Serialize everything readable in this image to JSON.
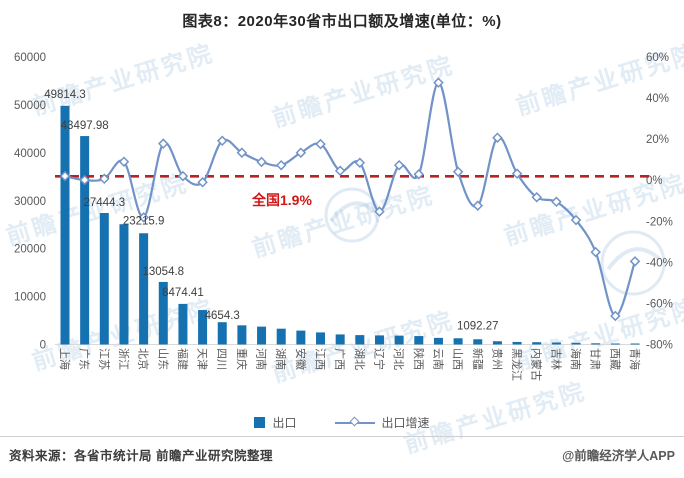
{
  "title": "图表8：2020年30省市出口额及增速(单位：%)",
  "legend": {
    "bar_label": "出口",
    "line_label": "出口增速"
  },
  "footer": {
    "source": "资料来源：各省市统计局 前瞻产业研究院整理",
    "credit": "@前瞻经济学人APP"
  },
  "watermark_text": "前瞻产业研究院",
  "colors": {
    "bar": "#1571b0",
    "line": "#7193c7",
    "marker_fill": "#ffffff",
    "reference_line": "#b32424",
    "annotation_text": "#d01616",
    "axis_text": "#595959",
    "data_label_text": "#404040",
    "axis_line": "#d9d9d9"
  },
  "chart_data": {
    "type": "bar+line",
    "title": "图表8：2020年30省市出口额及增速(单位：%)",
    "categories": [
      "上海",
      "广东",
      "江苏",
      "浙江",
      "北京",
      "山东",
      "福建",
      "天津",
      "四川",
      "重庆",
      "河南",
      "湖南",
      "安徽",
      "江西",
      "广西",
      "湖北",
      "辽宁",
      "河北",
      "陕西",
      "云南",
      "山西",
      "新疆",
      "贵州",
      "黑龙江",
      "内蒙古",
      "吉林",
      "海南",
      "甘肃",
      "西藏",
      "青海"
    ],
    "series": [
      {
        "name": "出口",
        "type": "bar",
        "axis": "left",
        "values": [
          49814.3,
          43497.98,
          27444.3,
          25100,
          23215.9,
          13054.8,
          8474.41,
          7190,
          4654.3,
          4000,
          3730,
          3300,
          2900,
          2520,
          2100,
          1960,
          1900,
          1850,
          1760,
          1380,
          1300,
          1092.27,
          680,
          530,
          480,
          420,
          350,
          250,
          130,
          60
        ]
      },
      {
        "name": "出口增速",
        "type": "line",
        "axis": "right",
        "values_pct": [
          2.0,
          0.1,
          0.7,
          9.0,
          -18.1,
          17.8,
          2.0,
          -1.0,
          19.2,
          13.4,
          8.9,
          7.3,
          13.4,
          17.6,
          4.6,
          8.5,
          -15.3,
          7.3,
          2.9,
          47.5,
          4.1,
          -12.4,
          20.7,
          3.2,
          -8.3,
          -10.5,
          -19.4,
          -35.0,
          -66.1,
          -39.5
        ]
      }
    ],
    "bar_labels": [
      "49814.3",
      "43497.98",
      "27444.3",
      null,
      "23215.9",
      "13054.8",
      "8474.41",
      null,
      "4654.3",
      null,
      null,
      null,
      null,
      null,
      null,
      null,
      null,
      null,
      null,
      null,
      null,
      "1092.27",
      null,
      null,
      null,
      null,
      null,
      null,
      null,
      null
    ],
    "left_axis": {
      "min": 0,
      "max": 60000,
      "step": 10000,
      "ticks": [
        "60000",
        "50000",
        "40000",
        "30000",
        "20000",
        "10000",
        "0"
      ]
    },
    "right_axis": {
      "min": -80,
      "max": 60,
      "step": 20,
      "ticks": [
        "60%",
        "40%",
        "20%",
        "0%",
        "-20%",
        "-40%",
        "-60%",
        "-80%"
      ]
    },
    "reference_line": {
      "value_pct": 1.9,
      "label": "全国",
      "label_value": "1.9%"
    },
    "grid": false,
    "legend_position": "bottom"
  }
}
